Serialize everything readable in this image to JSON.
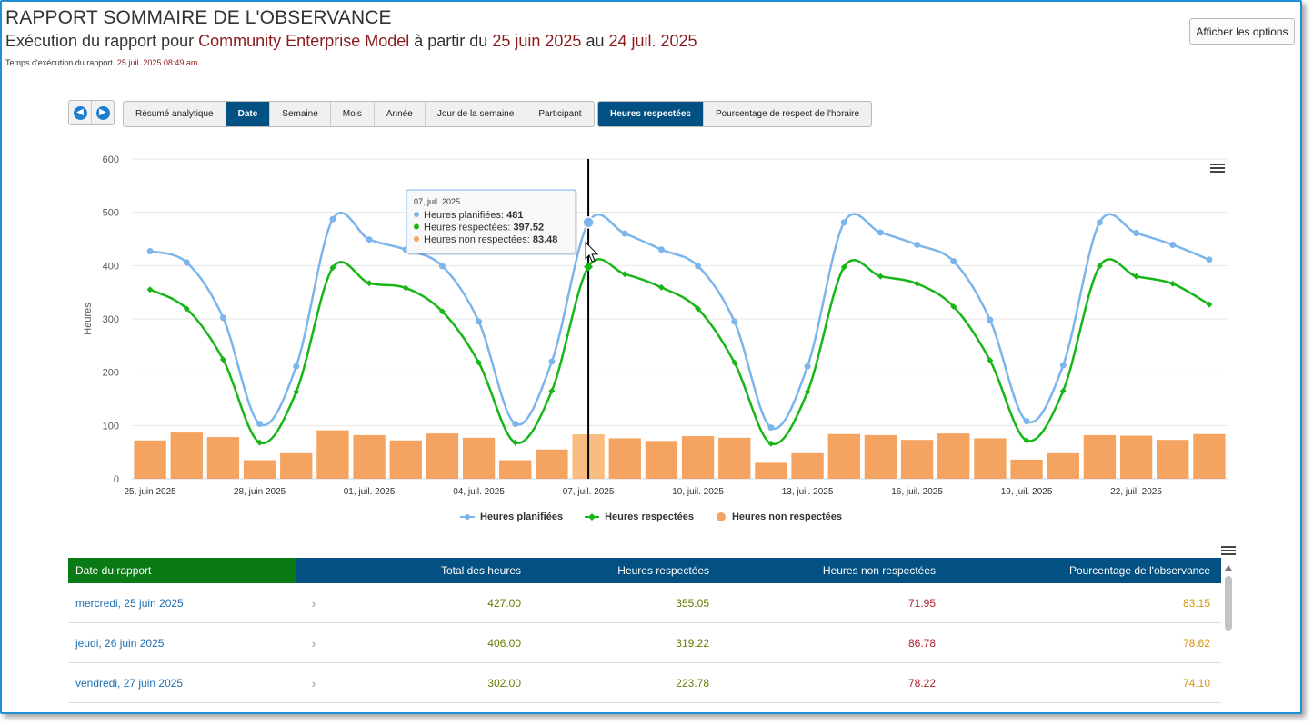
{
  "header": {
    "title": "RAPPORT SOMMAIRE DE L'OBSERVANCE",
    "subtitle_prefix": "Exécution du rapport pour",
    "subtitle_entity": "Community Enterprise Model",
    "subtitle_from": "à partir du",
    "subtitle_start": "25 juin 2025",
    "subtitle_to": "au",
    "subtitle_end": "24 juil. 2025",
    "runtime_label": "Temps d'exécution du rapport",
    "runtime_value": "25 juil. 2025 08:49 am"
  },
  "options_button": "Afficher les options",
  "nav": {
    "prev_icon": "arrow-left-icon",
    "next_icon": "arrow-right-icon"
  },
  "group_tabs": [
    {
      "label": "Résumé analytique",
      "active": false
    },
    {
      "label": "Date",
      "active": true
    },
    {
      "label": "Semaine",
      "active": false
    },
    {
      "label": "Mois",
      "active": false
    },
    {
      "label": "Année",
      "active": false
    },
    {
      "label": "Jour de la semaine",
      "active": false
    },
    {
      "label": "Participant",
      "active": false
    }
  ],
  "metric_tabs": [
    {
      "label": "Heures respectées",
      "active": true
    },
    {
      "label": "Pourcentage de respect de l'horaire",
      "active": false
    }
  ],
  "chart_data": {
    "type": "line",
    "ylabel": "Heures",
    "ylim": [
      0,
      600
    ],
    "yticks": [
      0,
      100,
      200,
      300,
      400,
      500,
      600
    ],
    "grid": true,
    "legend_position": "bottom",
    "x": [
      "2025-06-25",
      "2025-06-26",
      "2025-06-27",
      "2025-06-28",
      "2025-06-29",
      "2025-06-30",
      "2025-07-01",
      "2025-07-02",
      "2025-07-03",
      "2025-07-04",
      "2025-07-05",
      "2025-07-06",
      "2025-07-07",
      "2025-07-08",
      "2025-07-09",
      "2025-07-10",
      "2025-07-11",
      "2025-07-12",
      "2025-07-13",
      "2025-07-14",
      "2025-07-15",
      "2025-07-16",
      "2025-07-17",
      "2025-07-18",
      "2025-07-19",
      "2025-07-20",
      "2025-07-21",
      "2025-07-22",
      "2025-07-23",
      "2025-07-24"
    ],
    "xtick_labels": [
      "25, juin 2025",
      "28, juin 2025",
      "01, juil. 2025",
      "04, juil. 2025",
      "07, juil. 2025",
      "10, juil. 2025",
      "13, juil. 2025",
      "16, juil. 2025",
      "19, juil. 2025",
      "22, juil. 2025"
    ],
    "series": [
      {
        "name": "Heures planifiées",
        "kind": "line",
        "color": "#7cb5ec",
        "marker": "circle",
        "values": [
          427,
          406,
          302,
          103,
          211,
          487,
          449,
          430,
          399,
          295,
          103,
          220,
          481,
          460,
          430,
          399,
          295,
          96,
          211,
          481,
          462,
          439,
          408,
          298,
          108,
          213,
          481,
          461,
          439,
          411
        ]
      },
      {
        "name": "Heures respectées",
        "kind": "line",
        "color": "#17b617",
        "marker": "diamond",
        "values": [
          355.05,
          319.22,
          223.78,
          68,
          163,
          396,
          367,
          358,
          314,
          218,
          68,
          165,
          397.52,
          384,
          359,
          319,
          218,
          66,
          163,
          397,
          380,
          366,
          323,
          222,
          72,
          165,
          399,
          380,
          366,
          327
        ]
      },
      {
        "name": "Heures non respectées",
        "kind": "bar",
        "color": "#f4a460",
        "values": [
          71.95,
          86.78,
          78.22,
          35,
          48,
          91,
          82,
          72,
          85,
          77,
          35,
          55,
          83.48,
          76,
          71,
          80,
          77,
          30,
          48,
          84,
          82,
          73,
          85,
          76,
          36,
          48,
          82,
          81,
          73,
          84
        ]
      }
    ],
    "tooltip": {
      "date": "07, juil. 2025",
      "rows": [
        {
          "label": "Heures planifiées",
          "value": "481",
          "color": "#7cb5ec"
        },
        {
          "label": "Heures respectées",
          "value": "397.52",
          "color": "#17b617"
        },
        {
          "label": "Heures non respectées",
          "value": "83.48",
          "color": "#f4a460"
        }
      ],
      "index": 12
    }
  },
  "table": {
    "headers": [
      "Date du rapport",
      "Total des heures",
      "Heures respectées",
      "Heures non respectées",
      "Pourcentage de l'observance"
    ],
    "rows": [
      {
        "date": "mercredi, 25 juin 2025",
        "total": "427.00",
        "resp": "355.05",
        "non": "71.95",
        "pct": "83.15"
      },
      {
        "date": "jeudi, 26 juin 2025",
        "total": "406.00",
        "resp": "319.22",
        "non": "86.78",
        "pct": "78.62"
      },
      {
        "date": "vendredi, 27 juin 2025",
        "total": "302.00",
        "resp": "223.78",
        "non": "78.22",
        "pct": "74.10"
      }
    ]
  }
}
